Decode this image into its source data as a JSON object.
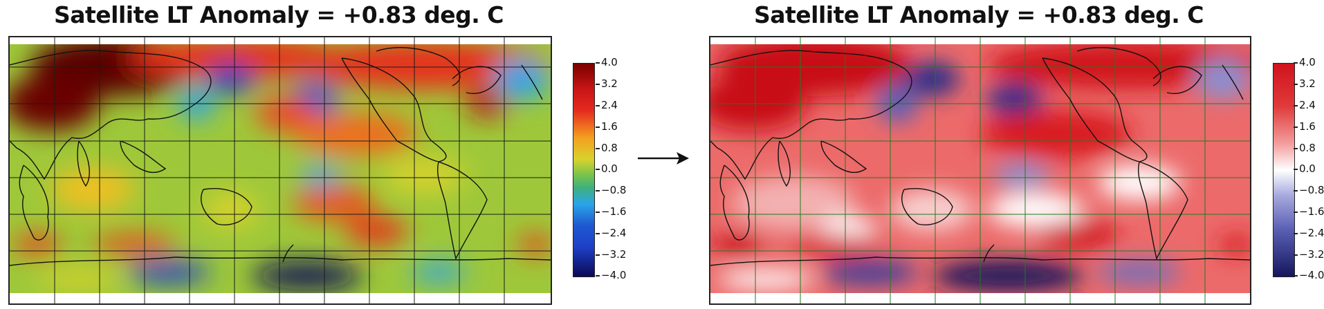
{
  "panels": [
    {
      "title": "Satellite LT Anomaly = +0.83 deg. C",
      "colormap": "jet-like (dark blue → blue → cyan → green → yellow → orange → red → dark red)",
      "colors": [
        "#0b0a55",
        "#1e40c8",
        "#2aa4e8",
        "#7cc44b",
        "#d7d22c",
        "#f5a020",
        "#e52a1f",
        "#7a0000"
      ]
    },
    {
      "title": "Satellite LT Anomaly = +0.83 deg. C",
      "colormap": "diverging blue-white-red",
      "colors": [
        "#15175c",
        "#5a5fb5",
        "#ffffff",
        "#ea6b6b",
        "#d0131d"
      ]
    }
  ],
  "colorbar": {
    "ticks": [
      "4.0",
      "3.2",
      "2.4",
      "1.6",
      "0.8",
      "0.0",
      "−0.8",
      "−1.6",
      "−2.4",
      "−3.2",
      "−4.0"
    ],
    "range": [
      -4.0,
      4.0
    ]
  },
  "arrow": "right-arrow-icon"
}
